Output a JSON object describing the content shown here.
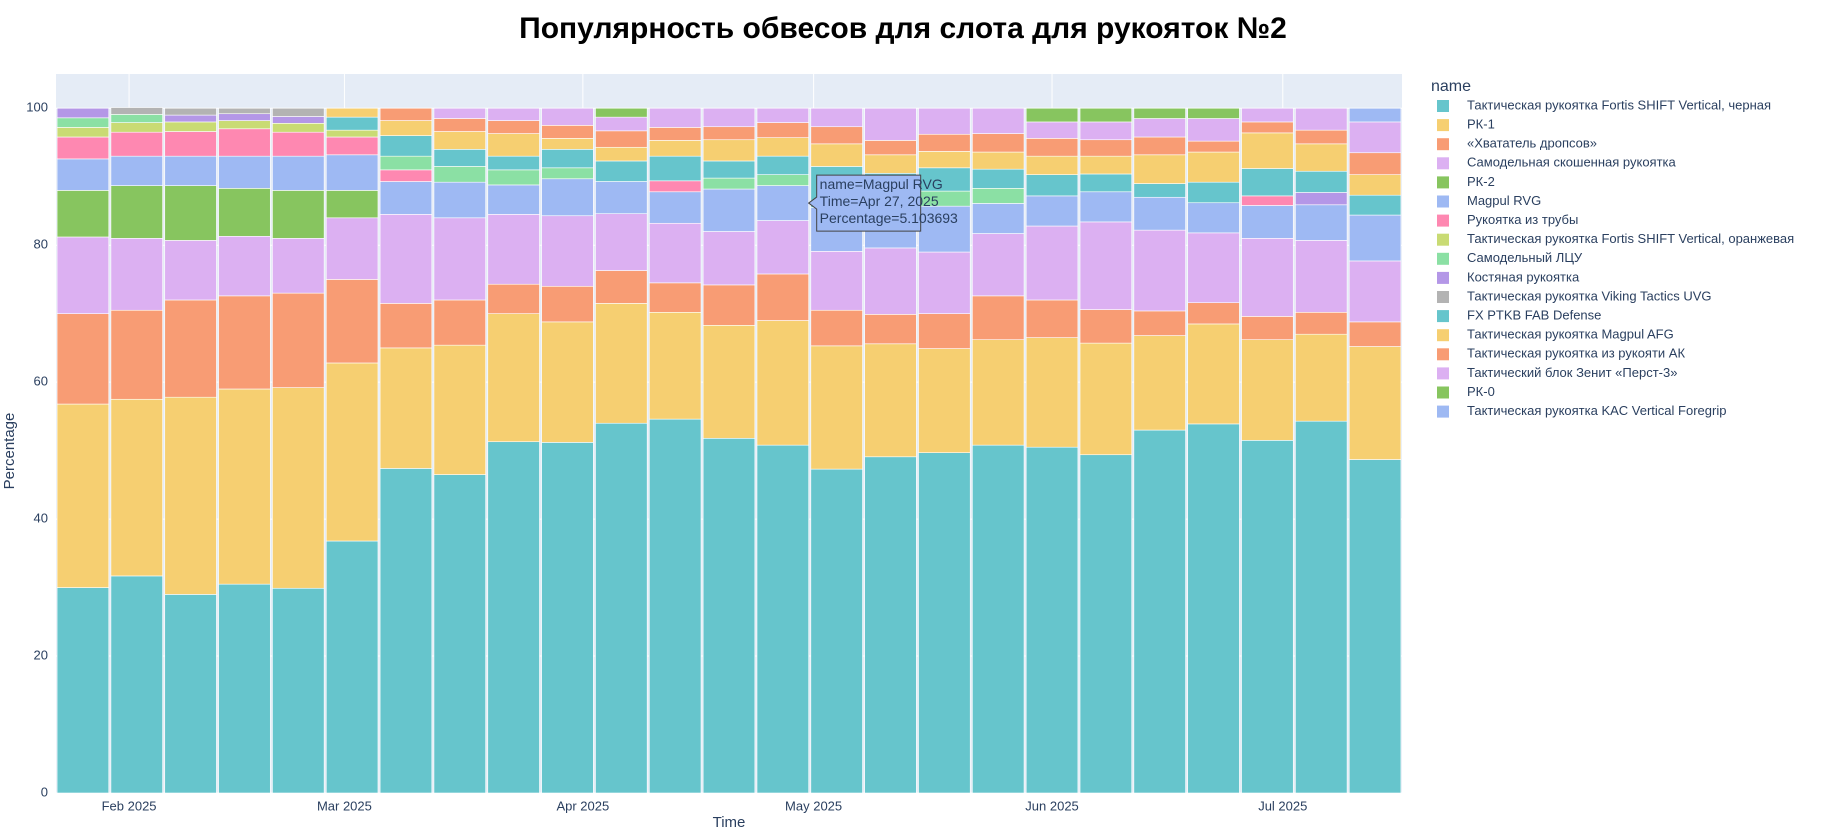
{
  "chart_data": {
    "type": "stacked_bar",
    "title": "Популярность обвесов для слота для рукояток №2",
    "x_label": "Time",
    "y_label": "Percentage",
    "legend_title": "name",
    "x": [
      "2025-01-26",
      "2025-02-02",
      "2025-02-09",
      "2025-02-16",
      "2025-02-23",
      "2025-03-02",
      "2025-03-09",
      "2025-03-16",
      "2025-03-23",
      "2025-03-30",
      "2025-04-06",
      "2025-04-13",
      "2025-04-20",
      "2025-04-27",
      "2025-05-04",
      "2025-05-11",
      "2025-05-18",
      "2025-05-25",
      "2025-06-01",
      "2025-06-08",
      "2025-06-15",
      "2025-06-22",
      "2025-06-29",
      "2025-07-06",
      "2025-07-13"
    ],
    "xlim": [
      "2025-01-22T12:00:00Z",
      "2025-07-16T12:00:00Z"
    ],
    "xticks": [
      {
        "value": "2025-02-01",
        "label": "Feb 2025"
      },
      {
        "value": "2025-03-01",
        "label": "Mar 2025"
      },
      {
        "value": "2025-04-01",
        "label": "Apr 2025"
      },
      {
        "value": "2025-05-01",
        "label": "May 2025"
      },
      {
        "value": "2025-06-01",
        "label": "Jun 2025"
      },
      {
        "value": "2025-07-01",
        "label": "Jul 2025"
      }
    ],
    "ylim": [
      0,
      105
    ],
    "yticks": [
      0,
      20,
      40,
      60,
      80,
      100
    ],
    "grid": true,
    "series": [
      {
        "name": "Тактическая рукоятка Fortis SHIFT Vertical, черная",
        "color": "#66C5CC",
        "values": [
          30.0,
          31.7,
          29.0,
          30.5,
          29.9,
          36.8,
          47.4,
          46.5,
          51.3,
          51.2,
          54.0,
          54.6,
          51.8,
          50.8,
          47.3,
          49.1,
          49.7,
          50.8,
          50.5,
          49.4,
          53.0,
          53.9,
          51.5,
          54.3,
          48.7
        ]
      },
      {
        "name": "РК-1",
        "color": "#F6CF71",
        "values": [
          26.8,
          25.8,
          28.8,
          28.5,
          29.3,
          26.0,
          17.6,
          18.9,
          18.7,
          17.6,
          17.5,
          15.6,
          16.5,
          18.2,
          18.0,
          16.5,
          15.2,
          15.4,
          16.0,
          16.3,
          13.8,
          14.6,
          14.7,
          12.7,
          16.5
        ]
      },
      {
        "name": "«Хвататель дропсов»",
        "color": "#F89C74",
        "values": [
          13.2,
          13.0,
          14.2,
          13.6,
          13.8,
          12.2,
          6.5,
          6.6,
          4.3,
          5.2,
          4.8,
          4.3,
          5.9,
          6.8,
          5.2,
          4.3,
          5.1,
          6.4,
          5.5,
          4.9,
          3.6,
          3.1,
          3.4,
          3.2,
          3.6
        ]
      },
      {
        "name": "Самодельная скошенная рукоятка",
        "color": "#DCB0F2",
        "values": [
          11.2,
          10.5,
          8.7,
          8.7,
          8.0,
          9.0,
          13.0,
          12.0,
          10.2,
          10.3,
          8.3,
          8.7,
          7.8,
          7.8,
          8.6,
          9.7,
          9.0,
          9.1,
          10.8,
          12.8,
          11.8,
          10.2,
          11.4,
          10.5,
          8.9
        ]
      },
      {
        "name": "РК-2",
        "color": "#87C55F",
        "values": [
          6.8,
          7.7,
          8.0,
          7.0,
          7.0,
          4.0,
          null,
          null,
          null,
          null,
          null,
          null,
          null,
          null,
          null,
          null,
          null,
          null,
          null,
          null,
          null,
          null,
          null,
          null,
          null
        ]
      },
      {
        "name": "Magpul RVG",
        "color": "#9EB9F3",
        "values": [
          4.6,
          4.3,
          4.3,
          4.7,
          5.0,
          5.2,
          4.8,
          5.2,
          4.3,
          5.4,
          4.7,
          4.6,
          6.2,
          5.103693,
          6.4,
          6.2,
          6.7,
          4.4,
          4.4,
          4.4,
          4.8,
          4.4,
          4.8,
          5.2,
          6.7
        ]
      },
      {
        "name": "Рукоятка из трубы",
        "color": "#FE88B1",
        "values": [
          3.2,
          3.5,
          3.6,
          4.0,
          3.5,
          2.6,
          1.7,
          null,
          null,
          null,
          null,
          1.6,
          null,
          null,
          null,
          null,
          null,
          null,
          null,
          null,
          null,
          null,
          1.4,
          null,
          null
        ]
      },
      {
        "name": "Тактическая рукоятка Fortis SHIFT Vertical, оранжевая",
        "color": "#C9DB74",
        "values": [
          1.4,
          1.4,
          1.4,
          1.2,
          1.3,
          1.0,
          null,
          null,
          null,
          null,
          null,
          null,
          null,
          null,
          null,
          null,
          null,
          null,
          null,
          null,
          null,
          null,
          null,
          null,
          null
        ]
      },
      {
        "name": "Самодельный ЛЦУ",
        "color": "#8BE0A4",
        "values": [
          1.4,
          1.2,
          null,
          null,
          null,
          null,
          2.0,
          2.3,
          2.2,
          1.6,
          null,
          null,
          1.6,
          1.6,
          null,
          null,
          2.2,
          2.2,
          null,
          null,
          null,
          null,
          null,
          null,
          null
        ]
      },
      {
        "name": "Костяная рукоятка",
        "color": "#B497E7",
        "values": [
          1.4,
          null,
          1.0,
          1.0,
          1.0,
          null,
          null,
          null,
          null,
          null,
          null,
          null,
          null,
          null,
          null,
          null,
          null,
          null,
          null,
          null,
          null,
          null,
          null,
          1.8,
          null
        ]
      },
      {
        "name": "Тактическая рукоятка Viking Tactics UVG",
        "color": "#B3B3B3",
        "values": [
          null,
          1.0,
          1.0,
          0.8,
          1.2,
          null,
          null,
          null,
          null,
          null,
          null,
          null,
          null,
          null,
          null,
          null,
          null,
          null,
          null,
          null,
          null,
          null,
          null,
          null,
          null
        ]
      },
      {
        "name": "FX PTKB FAB Defense",
        "color": "#66C5CC",
        "values": [
          null,
          null,
          null,
          null,
          null,
          1.9,
          3.0,
          2.5,
          2.0,
          2.7,
          3.0,
          3.6,
          2.5,
          2.7,
          6.0,
          4.7,
          3.4,
          2.8,
          3.1,
          2.6,
          2.0,
          3.0,
          4.0,
          3.1,
          2.9
        ]
      },
      {
        "name": "Тактическая рукоятка Magpul AFG",
        "color": "#F6CF71",
        "values": [
          null,
          null,
          null,
          null,
          null,
          1.3,
          2.2,
          2.6,
          3.3,
          1.6,
          2.0,
          2.3,
          3.1,
          2.7,
          3.3,
          2.7,
          2.4,
          2.5,
          2.7,
          2.6,
          4.2,
          4.4,
          5.2,
          4.0,
          3.0
        ]
      },
      {
        "name": "Тактическая рукоятка из рукояти АК",
        "color": "#F89C74",
        "values": [
          null,
          null,
          null,
          null,
          null,
          null,
          1.8,
          1.9,
          1.9,
          1.9,
          2.4,
          1.9,
          1.9,
          2.2,
          2.5,
          2.1,
          2.5,
          2.7,
          2.6,
          2.4,
          2.6,
          1.6,
          1.6,
          2.0,
          3.2
        ]
      },
      {
        "name": "Тактический блок Зенит «Перст-3»",
        "color": "#DCB0F2",
        "values": [
          null,
          null,
          null,
          null,
          null,
          null,
          null,
          1.5,
          1.8,
          2.5,
          2.0,
          2.8,
          2.7,
          2.1,
          2.7,
          4.7,
          3.8,
          3.7,
          2.4,
          2.6,
          2.7,
          3.3,
          2.0,
          3.2,
          4.5
        ]
      },
      {
        "name": "РК-0",
        "color": "#87C55F",
        "values": [
          null,
          null,
          null,
          null,
          null,
          null,
          null,
          null,
          null,
          null,
          1.3,
          null,
          null,
          null,
          null,
          null,
          null,
          null,
          2.0,
          2.0,
          1.5,
          1.5,
          null,
          null,
          null
        ]
      },
      {
        "name": "Тактическая рукоятка KAC Vertical Foregrip",
        "color": "#9EB9F3",
        "values": [
          null,
          null,
          null,
          null,
          null,
          null,
          null,
          null,
          null,
          null,
          null,
          null,
          null,
          null,
          null,
          null,
          null,
          null,
          null,
          null,
          null,
          null,
          null,
          null,
          2.0
        ]
      }
    ],
    "tooltip": {
      "series": 5,
      "point": 13,
      "lines": [
        "name=Magpul RVG",
        "Time=Apr 27, 2025",
        "Percentage=5.103693"
      ]
    }
  }
}
